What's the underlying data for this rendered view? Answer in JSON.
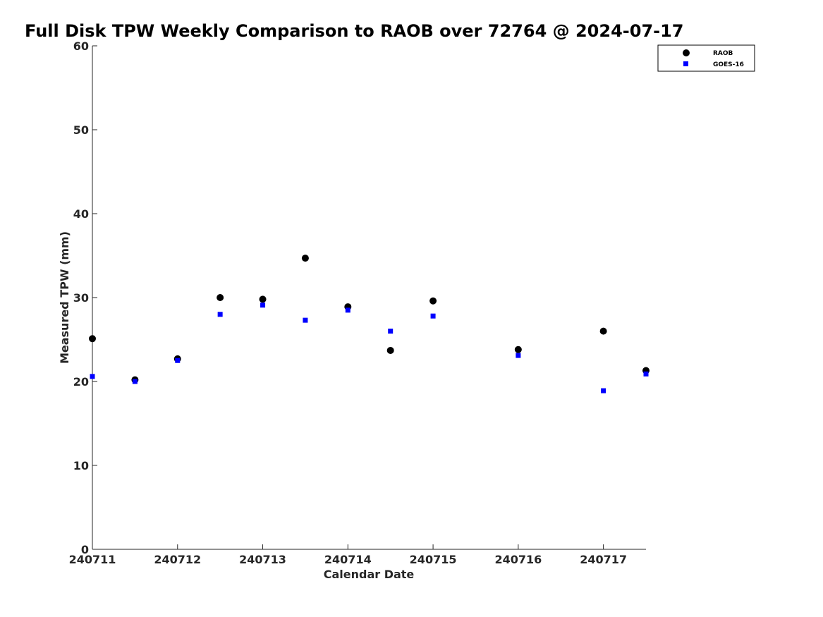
{
  "chart_data": {
    "type": "scatter",
    "title": "Full Disk TPW Weekly Comparison to RAOB over 72764 @ 2024-07-17",
    "xlabel": "Calendar Date",
    "ylabel": "Measured TPW (mm)",
    "xlim": [
      "2024-07-11",
      "2024-07-17 12:00"
    ],
    "ylim": [
      0,
      60
    ],
    "x_ticks": [
      {
        "x": "2024-07-11",
        "label": "240711"
      },
      {
        "x": "2024-07-12",
        "label": "240712"
      },
      {
        "x": "2024-07-13",
        "label": "240713"
      },
      {
        "x": "2024-07-14",
        "label": "240714"
      },
      {
        "x": "2024-07-15",
        "label": "240715"
      },
      {
        "x": "2024-07-16",
        "label": "240716"
      },
      {
        "x": "2024-07-17",
        "label": "240717"
      }
    ],
    "y_ticks": [
      "0",
      "10",
      "20",
      "30",
      "40",
      "50",
      "60"
    ],
    "grid": false,
    "legend_position": "top-right",
    "series": [
      {
        "name": "RAOB",
        "marker": "circle",
        "color": "#000000",
        "points": [
          {
            "x": "2024-07-11 00:00",
            "y": 25.1
          },
          {
            "x": "2024-07-11 12:00",
            "y": 20.2
          },
          {
            "x": "2024-07-12 00:00",
            "y": 22.7
          },
          {
            "x": "2024-07-12 12:00",
            "y": 30.0
          },
          {
            "x": "2024-07-13 00:00",
            "y": 29.8
          },
          {
            "x": "2024-07-13 12:00",
            "y": 34.7
          },
          {
            "x": "2024-07-14 00:00",
            "y": 28.9
          },
          {
            "x": "2024-07-14 12:00",
            "y": 23.7
          },
          {
            "x": "2024-07-15 00:00",
            "y": 29.6
          },
          {
            "x": "2024-07-16 00:00",
            "y": 23.8
          },
          {
            "x": "2024-07-17 00:00",
            "y": 26.0
          },
          {
            "x": "2024-07-17 12:00",
            "y": 21.3
          }
        ]
      },
      {
        "name": "GOES-16",
        "marker": "square",
        "color": "#0000ff",
        "points": [
          {
            "x": "2024-07-11 00:00",
            "y": 20.6
          },
          {
            "x": "2024-07-11 12:00",
            "y": 20.0
          },
          {
            "x": "2024-07-12 00:00",
            "y": 22.5
          },
          {
            "x": "2024-07-12 12:00",
            "y": 28.0
          },
          {
            "x": "2024-07-13 00:00",
            "y": 29.1
          },
          {
            "x": "2024-07-13 12:00",
            "y": 27.3
          },
          {
            "x": "2024-07-14 00:00",
            "y": 28.5
          },
          {
            "x": "2024-07-14 12:00",
            "y": 26.0
          },
          {
            "x": "2024-07-15 00:00",
            "y": 27.8
          },
          {
            "x": "2024-07-16 00:00",
            "y": 23.1
          },
          {
            "x": "2024-07-17 00:00",
            "y": 18.9
          },
          {
            "x": "2024-07-17 12:00",
            "y": 20.9
          }
        ]
      }
    ]
  }
}
